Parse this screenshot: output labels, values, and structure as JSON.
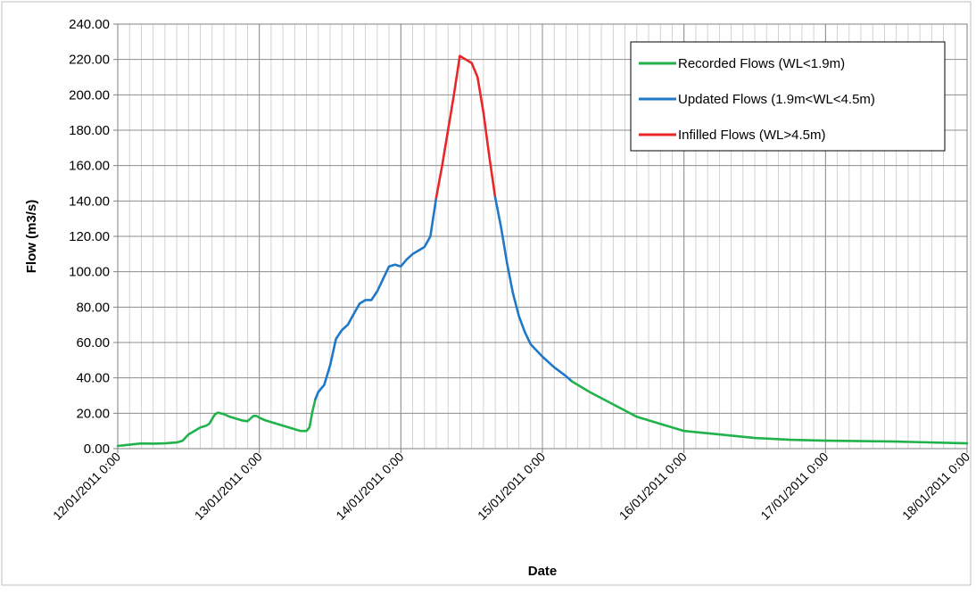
{
  "chart_data": {
    "type": "line",
    "title": "",
    "xlabel": "Date",
    "ylabel": "Flow (m3/s)",
    "ylim": [
      0,
      240
    ],
    "yticks": [
      "0.00",
      "20.00",
      "40.00",
      "60.00",
      "80.00",
      "100.00",
      "120.00",
      "140.00",
      "160.00",
      "180.00",
      "200.00",
      "220.00",
      "240.00"
    ],
    "xlim": [
      "2011-01-12T00:00",
      "2011-01-18T00:00"
    ],
    "xticks": [
      "12/01/2011 0:00",
      "13/01/2011 0:00",
      "14/01/2011 0:00",
      "15/01/2011 0:00",
      "16/01/2011 0:00",
      "17/01/2011 0:00",
      "18/01/2011 0:00"
    ],
    "grid": true,
    "legend_position": "top-right",
    "series": [
      {
        "name": "Recorded Flows (WL<1.9m)",
        "color": "#22b24c",
        "points": [
          [
            "2011-01-12T00:00",
            1.5
          ],
          [
            "2011-01-12T02:00",
            2.2
          ],
          [
            "2011-01-12T04:00",
            2.9
          ],
          [
            "2011-01-12T06:00",
            2.8
          ],
          [
            "2011-01-12T08:00",
            3.0
          ],
          [
            "2011-01-12T10:00",
            3.5
          ],
          [
            "2011-01-12T11:00",
            4.5
          ],
          [
            "2011-01-12T12:00",
            8.0
          ],
          [
            "2011-01-12T13:00",
            10.0
          ],
          [
            "2011-01-12T14:00",
            12.0
          ],
          [
            "2011-01-12T15:00",
            13.0
          ],
          [
            "2011-01-12T15:30",
            14.0
          ],
          [
            "2011-01-12T16:30",
            19.5
          ],
          [
            "2011-01-12T17:00",
            20.3
          ],
          [
            "2011-01-12T18:00",
            19.5
          ],
          [
            "2011-01-12T19:00",
            18.0
          ],
          [
            "2011-01-12T20:00",
            17.0
          ],
          [
            "2011-01-12T21:00",
            16.0
          ],
          [
            "2011-01-12T22:00",
            15.5
          ],
          [
            "2011-01-12T23:00",
            18.5
          ],
          [
            "2011-01-12T23:30",
            18.5
          ],
          [
            "2011-01-13T00:00",
            17.5
          ],
          [
            "2011-01-13T01:00",
            16.0
          ],
          [
            "2011-01-13T02:00",
            15.0
          ],
          [
            "2011-01-13T03:00",
            14.0
          ],
          [
            "2011-01-13T04:00",
            13.0
          ],
          [
            "2011-01-13T05:00",
            12.0
          ],
          [
            "2011-01-13T06:00",
            11.0
          ],
          [
            "2011-01-13T07:00",
            10.0
          ],
          [
            "2011-01-13T08:00",
            10.0
          ],
          [
            "2011-01-13T08:30",
            12.0
          ],
          [
            "2011-01-13T09:00",
            21.0
          ],
          [
            "2011-01-13T09:30",
            28.0
          ]
        ]
      },
      {
        "name": "Updated Flows (1.9m<WL<4.5m)",
        "color": "#1f78c8",
        "points": [
          [
            "2011-01-13T09:30",
            28.0
          ],
          [
            "2011-01-13T10:00",
            32.0
          ],
          [
            "2011-01-13T11:00",
            36.0
          ],
          [
            "2011-01-13T12:00",
            47.0
          ],
          [
            "2011-01-13T13:00",
            62.0
          ],
          [
            "2011-01-13T14:00",
            67.0
          ],
          [
            "2011-01-13T15:00",
            70.0
          ],
          [
            "2011-01-13T16:00",
            76.0
          ],
          [
            "2011-01-13T17:00",
            82.0
          ],
          [
            "2011-01-13T18:00",
            84.0
          ],
          [
            "2011-01-13T19:00",
            84.0
          ],
          [
            "2011-01-13T20:00",
            89.0
          ],
          [
            "2011-01-13T21:00",
            96.0
          ],
          [
            "2011-01-13T22:00",
            103.0
          ],
          [
            "2011-01-13T23:00",
            104.0
          ],
          [
            "2011-01-14T00:00",
            103.0
          ],
          [
            "2011-01-14T01:00",
            107.0
          ],
          [
            "2011-01-14T02:00",
            110.0
          ],
          [
            "2011-01-14T03:00",
            112.0
          ],
          [
            "2011-01-14T04:00",
            114.0
          ],
          [
            "2011-01-14T05:00",
            120.0
          ],
          [
            "2011-01-14T06:00",
            142.0
          ]
        ]
      },
      {
        "name": "Infilled Flows (WL>4.5m)",
        "color": "#e8272a",
        "points": [
          [
            "2011-01-14T06:00",
            142.0
          ],
          [
            "2011-01-14T07:00",
            160.0
          ],
          [
            "2011-01-14T08:00",
            180.0
          ],
          [
            "2011-01-14T09:00",
            200.0
          ],
          [
            "2011-01-14T10:00",
            222.0
          ],
          [
            "2011-01-14T11:00",
            220.0
          ],
          [
            "2011-01-14T12:00",
            218.0
          ],
          [
            "2011-01-14T13:00",
            210.0
          ],
          [
            "2011-01-14T14:00",
            190.0
          ],
          [
            "2011-01-14T15:00",
            165.0
          ],
          [
            "2011-01-14T16:00",
            142.0
          ]
        ]
      },
      {
        "name": "Updated Flows (1.9m<WL<4.5m)",
        "color": "#1f78c8",
        "points": [
          [
            "2011-01-14T16:00",
            142.0
          ],
          [
            "2011-01-14T17:00",
            125.0
          ],
          [
            "2011-01-14T18:00",
            105.0
          ],
          [
            "2011-01-14T19:00",
            88.0
          ],
          [
            "2011-01-14T20:00",
            75.0
          ],
          [
            "2011-01-14T21:00",
            66.0
          ],
          [
            "2011-01-14T22:00",
            59.0
          ],
          [
            "2011-01-15T00:00",
            52.0
          ],
          [
            "2011-01-15T02:00",
            46.0
          ],
          [
            "2011-01-15T04:00",
            41.0
          ],
          [
            "2011-01-15T05:00",
            38.0
          ]
        ]
      },
      {
        "name": "Recorded Flows (WL<1.9m)",
        "color": "#22b24c",
        "points": [
          [
            "2011-01-15T05:00",
            38.0
          ],
          [
            "2011-01-15T08:00",
            32.0
          ],
          [
            "2011-01-15T12:00",
            25.0
          ],
          [
            "2011-01-15T16:00",
            18.0
          ],
          [
            "2011-01-15T20:00",
            14.0
          ],
          [
            "2011-01-16T00:00",
            10.0
          ],
          [
            "2011-01-16T06:00",
            8.0
          ],
          [
            "2011-01-16T12:00",
            6.0
          ],
          [
            "2011-01-16T18:00",
            5.0
          ],
          [
            "2011-01-17T00:00",
            4.5
          ],
          [
            "2011-01-17T12:00",
            4.0
          ],
          [
            "2011-01-18T00:00",
            3.0
          ]
        ]
      }
    ],
    "legend": [
      {
        "label": "Recorded Flows (WL<1.9m)",
        "color": "#22b24c"
      },
      {
        "label": "Updated Flows (1.9m<WL<4.5m)",
        "color": "#1f78c8"
      },
      {
        "label": "Infilled Flows (WL>4.5m)",
        "color": "#e8272a"
      }
    ]
  }
}
